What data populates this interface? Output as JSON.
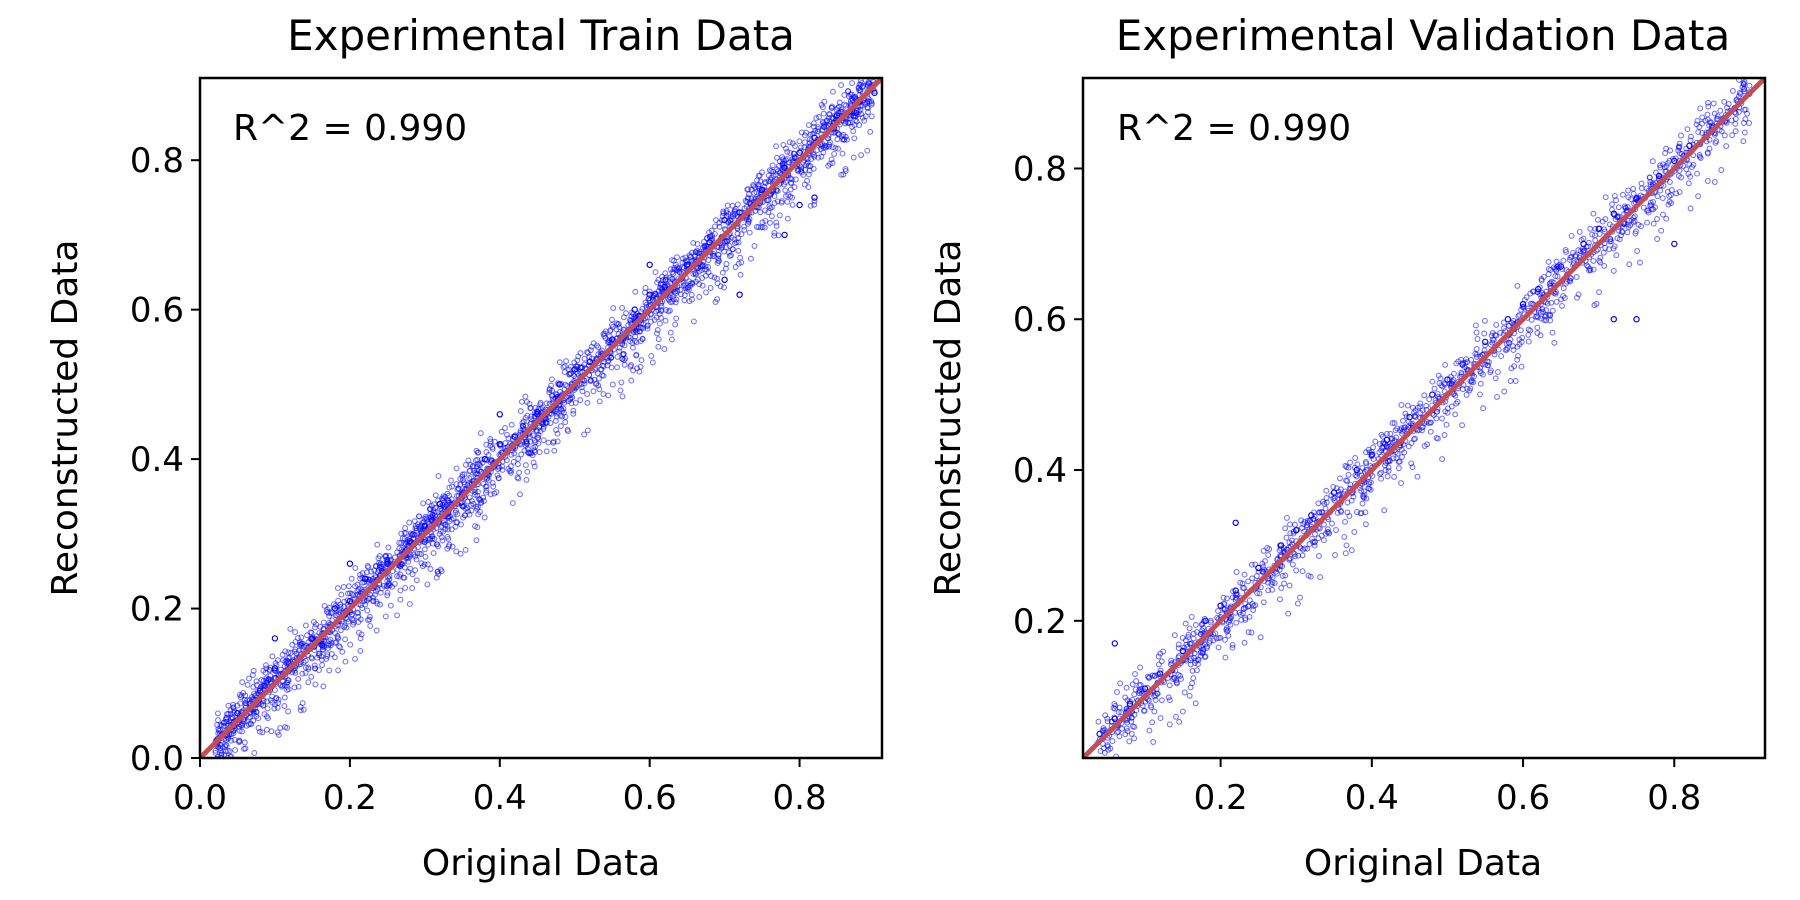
{
  "chart_data": [
    {
      "type": "scatter",
      "title": "Experimental Train Data",
      "xlabel": "Original Data",
      "ylabel": "Reconstructed Data",
      "xlim": [
        0.0,
        0.91
      ],
      "ylim": [
        0.0,
        0.91
      ],
      "xticks": [
        0.0,
        0.2,
        0.4,
        0.6,
        0.8
      ],
      "xtick_labels": [
        "0.0",
        "0.2",
        "0.4",
        "0.6",
        "0.8"
      ],
      "yticks": [
        0.0,
        0.2,
        0.4,
        0.6,
        0.8
      ],
      "ytick_labels": [
        "0.0",
        "0.2",
        "0.4",
        "0.6",
        "0.8"
      ],
      "annotation": "R^2 = 0.990",
      "grid": false,
      "series": [
        {
          "kind": "scatter",
          "color": "#0000ff",
          "points": [
            [
              0.05,
              0.06
            ],
            [
              0.08,
              0.09
            ],
            [
              0.1,
              0.12
            ],
            [
              0.12,
              0.12
            ],
            [
              0.15,
              0.16
            ],
            [
              0.18,
              0.2
            ],
            [
              0.2,
              0.21
            ],
            [
              0.22,
              0.24
            ],
            [
              0.25,
              0.26
            ],
            [
              0.28,
              0.29
            ],
            [
              0.3,
              0.31
            ],
            [
              0.32,
              0.34
            ],
            [
              0.35,
              0.35
            ],
            [
              0.38,
              0.4
            ],
            [
              0.4,
              0.42
            ],
            [
              0.42,
              0.43
            ],
            [
              0.45,
              0.46
            ],
            [
              0.48,
              0.5
            ],
            [
              0.5,
              0.52
            ],
            [
              0.52,
              0.53
            ],
            [
              0.55,
              0.56
            ],
            [
              0.58,
              0.6
            ],
            [
              0.6,
              0.62
            ],
            [
              0.62,
              0.63
            ],
            [
              0.65,
              0.66
            ],
            [
              0.68,
              0.69
            ],
            [
              0.7,
              0.72
            ],
            [
              0.72,
              0.73
            ],
            [
              0.75,
              0.76
            ],
            [
              0.78,
              0.79
            ],
            [
              0.8,
              0.81
            ],
            [
              0.82,
              0.83
            ],
            [
              0.85,
              0.86
            ],
            [
              0.88,
              0.88
            ],
            [
              0.9,
              0.89
            ],
            [
              0.1,
              0.16
            ],
            [
              0.2,
              0.26
            ],
            [
              0.4,
              0.46
            ],
            [
              0.6,
              0.66
            ],
            [
              0.7,
              0.64
            ],
            [
              0.72,
              0.62
            ],
            [
              0.78,
              0.7
            ],
            [
              0.8,
              0.74
            ],
            [
              0.82,
              0.75
            ]
          ]
        },
        {
          "kind": "line",
          "name": "",
          "color": "#c44e52",
          "x": [
            0.0,
            0.91
          ],
          "y": [
            0.0,
            0.91
          ]
        }
      ]
    },
    {
      "type": "scatter",
      "title": "Experimental Validation Data",
      "xlabel": "Original Data",
      "ylabel": "Reconstructed Data",
      "xlim": [
        0.018,
        0.92
      ],
      "ylim": [
        0.018,
        0.92
      ],
      "xticks": [
        0.2,
        0.4,
        0.6,
        0.8
      ],
      "xtick_labels": [
        "0.2",
        "0.4",
        "0.6",
        "0.8"
      ],
      "yticks": [
        0.2,
        0.4,
        0.6,
        0.8
      ],
      "ytick_labels": [
        "0.2",
        "0.4",
        "0.6",
        "0.8"
      ],
      "annotation": "R^2 = 0.990",
      "grid": false,
      "series": [
        {
          "kind": "scatter",
          "color": "#0000ff",
          "points": [
            [
              0.04,
              0.05
            ],
            [
              0.06,
              0.07
            ],
            [
              0.08,
              0.09
            ],
            [
              0.1,
              0.11
            ],
            [
              0.12,
              0.13
            ],
            [
              0.15,
              0.16
            ],
            [
              0.18,
              0.2
            ],
            [
              0.2,
              0.22
            ],
            [
              0.22,
              0.24
            ],
            [
              0.25,
              0.27
            ],
            [
              0.28,
              0.3
            ],
            [
              0.3,
              0.32
            ],
            [
              0.32,
              0.34
            ],
            [
              0.35,
              0.37
            ],
            [
              0.38,
              0.4
            ],
            [
              0.4,
              0.42
            ],
            [
              0.42,
              0.44
            ],
            [
              0.45,
              0.47
            ],
            [
              0.48,
              0.5
            ],
            [
              0.5,
              0.52
            ],
            [
              0.52,
              0.54
            ],
            [
              0.55,
              0.57
            ],
            [
              0.58,
              0.6
            ],
            [
              0.6,
              0.62
            ],
            [
              0.62,
              0.64
            ],
            [
              0.65,
              0.67
            ],
            [
              0.68,
              0.7
            ],
            [
              0.7,
              0.72
            ],
            [
              0.72,
              0.74
            ],
            [
              0.75,
              0.76
            ],
            [
              0.78,
              0.79
            ],
            [
              0.8,
              0.81
            ],
            [
              0.82,
              0.83
            ],
            [
              0.85,
              0.85
            ],
            [
              0.88,
              0.88
            ],
            [
              0.06,
              0.17
            ],
            [
              0.22,
              0.33
            ],
            [
              0.72,
              0.6
            ],
            [
              0.75,
              0.6
            ],
            [
              0.8,
              0.7
            ]
          ]
        },
        {
          "kind": "line",
          "name": "",
          "color": "#c44e52",
          "x": [
            0.018,
            0.92
          ],
          "y": [
            0.018,
            0.92
          ]
        }
      ]
    }
  ]
}
